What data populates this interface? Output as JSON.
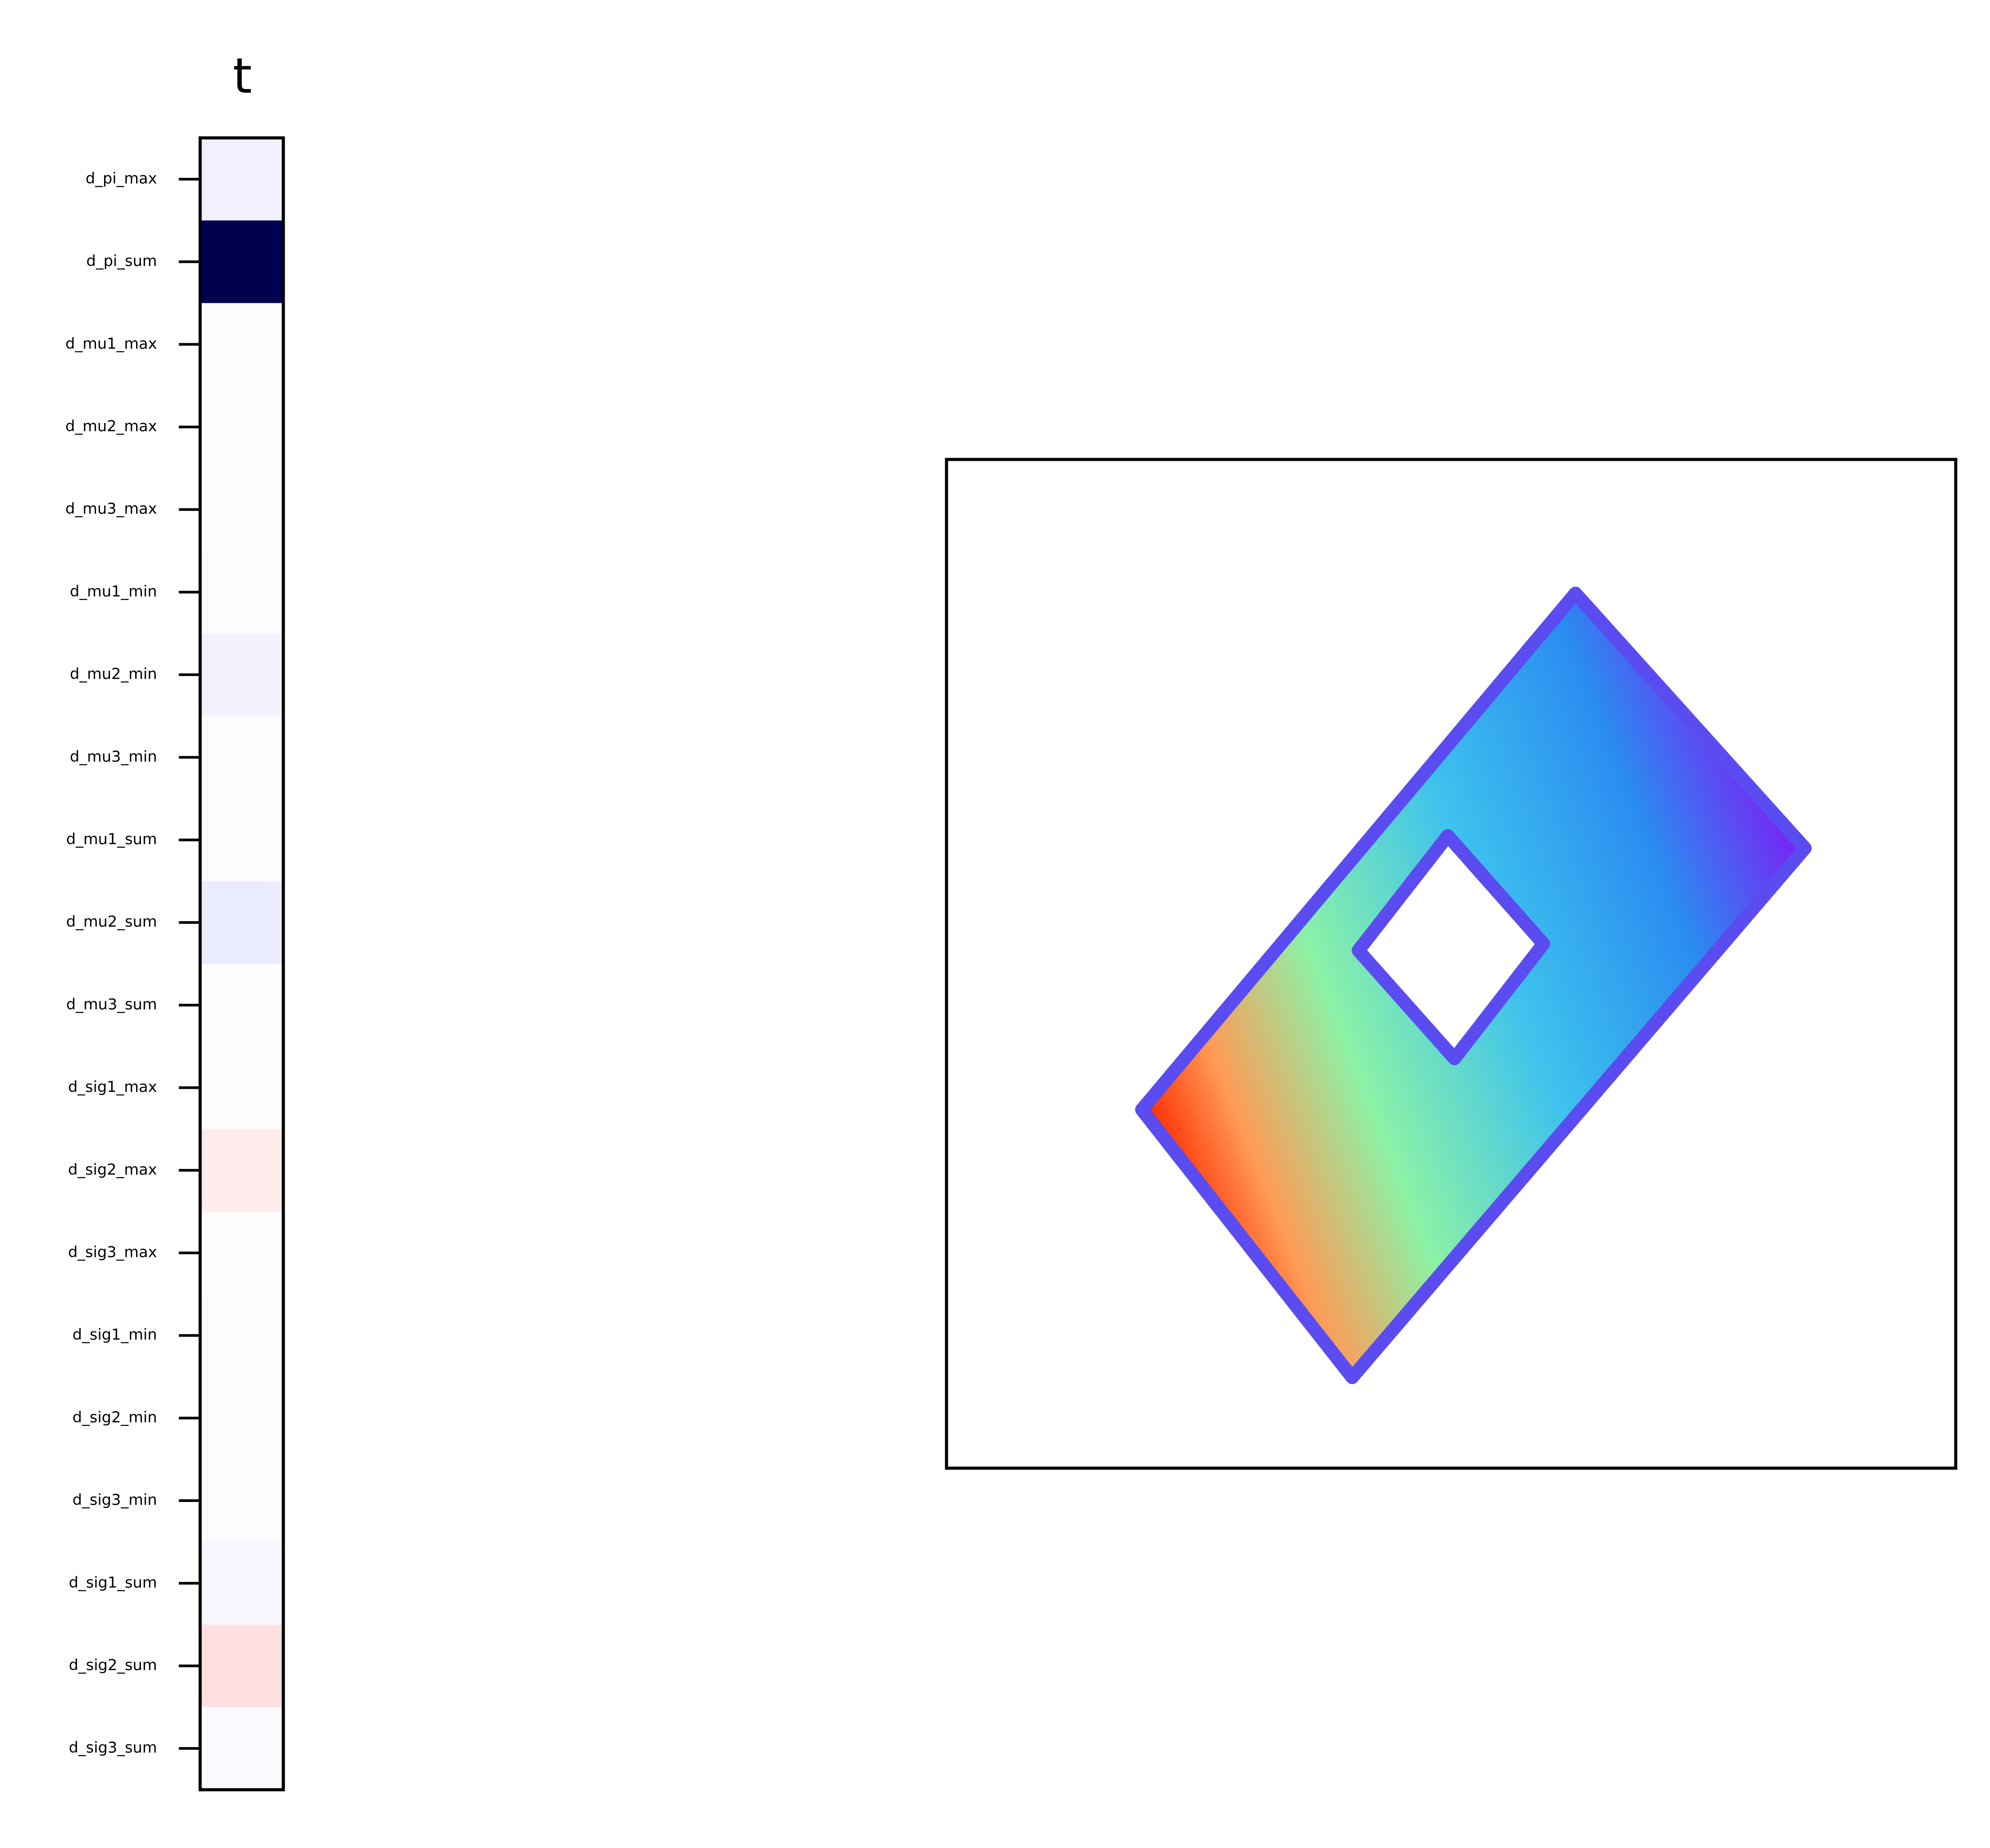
{
  "chart_data": {
    "type": "heatmap",
    "title": "t",
    "categories": [
      "d_pi_max",
      "d_pi_sum",
      "d_mu1_max",
      "d_mu2_max",
      "d_mu3_max",
      "d_mu1_min",
      "d_mu2_min",
      "d_mu3_min",
      "d_mu1_sum",
      "d_mu2_sum",
      "d_mu3_sum",
      "d_sig1_max",
      "d_sig2_max",
      "d_sig3_max",
      "d_sig1_min",
      "d_sig2_min",
      "d_sig3_min",
      "d_sig1_sum",
      "d_sig2_sum",
      "d_sig3_sum"
    ],
    "values": [
      -0.03,
      -0.99,
      0.005,
      0.005,
      0.005,
      -0.005,
      -0.025,
      -0.005,
      -0.005,
      -0.04,
      0.005,
      0.005,
      0.04,
      0.005,
      -0.005,
      -0.005,
      -0.005,
      -0.015,
      0.06,
      -0.01
    ],
    "colormap": "seismic",
    "clim": [
      -1,
      1
    ]
  }
}
